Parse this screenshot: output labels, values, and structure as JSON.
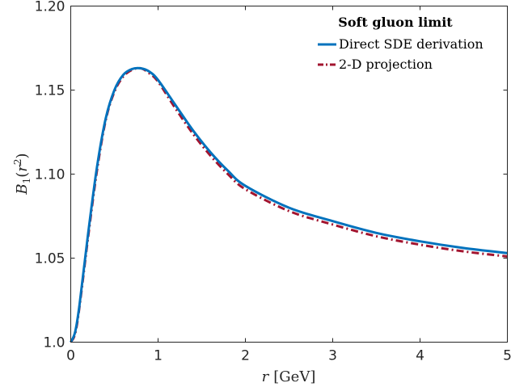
{
  "chart_data": {
    "type": "line",
    "xlabel_var": "r",
    "xlabel_unit": "[GeV]",
    "ylabel_base": "B",
    "ylabel_sub": "1",
    "ylabel_arg": "r",
    "ylabel_exp": "2",
    "xlim": [
      0,
      5
    ],
    "ylim": [
      1.0,
      1.2
    ],
    "xticks": [
      0,
      1,
      2,
      3,
      4,
      5
    ],
    "xtick_labels": [
      "0",
      "1",
      "2",
      "3",
      "4",
      "5"
    ],
    "yticks": [
      1.0,
      1.05,
      1.1,
      1.15,
      1.2
    ],
    "ytick_labels": [
      "1.0",
      "1.05",
      "1.10",
      "1.15",
      "1.20"
    ],
    "grid": false,
    "legend": {
      "title": "Soft gluon limit",
      "placement": "top-right"
    },
    "series": [
      {
        "name": "Direct SDE derivation",
        "color": "#0072bd",
        "style": "solid",
        "x": [
          0.0,
          0.05,
          0.1,
          0.2,
          0.3,
          0.4,
          0.5,
          0.6,
          0.7,
          0.8,
          0.9,
          1.0,
          1.2,
          1.4,
          1.6,
          1.8,
          2.0,
          2.5,
          3.0,
          3.5,
          4.0,
          4.5,
          5.0
        ],
        "values": [
          1.0,
          1.006,
          1.022,
          1.065,
          1.104,
          1.133,
          1.15,
          1.159,
          1.1625,
          1.163,
          1.161,
          1.156,
          1.141,
          1.126,
          1.113,
          1.102,
          1.093,
          1.08,
          1.072,
          1.065,
          1.06,
          1.056,
          1.053
        ]
      },
      {
        "name": "2-D projection",
        "color": "#a2142f",
        "style": "dash-dot",
        "x": [
          0.0,
          0.05,
          0.1,
          0.2,
          0.3,
          0.4,
          0.5,
          0.6,
          0.7,
          0.8,
          0.9,
          1.0,
          1.2,
          1.4,
          1.6,
          1.8,
          2.0,
          2.5,
          3.0,
          3.5,
          4.0,
          4.5,
          5.0
        ],
        "values": [
          1.0,
          1.005,
          1.021,
          1.063,
          1.102,
          1.132,
          1.149,
          1.158,
          1.162,
          1.163,
          1.16,
          1.155,
          1.139,
          1.124,
          1.111,
          1.1,
          1.091,
          1.078,
          1.07,
          1.063,
          1.058,
          1.054,
          1.051
        ]
      }
    ]
  }
}
